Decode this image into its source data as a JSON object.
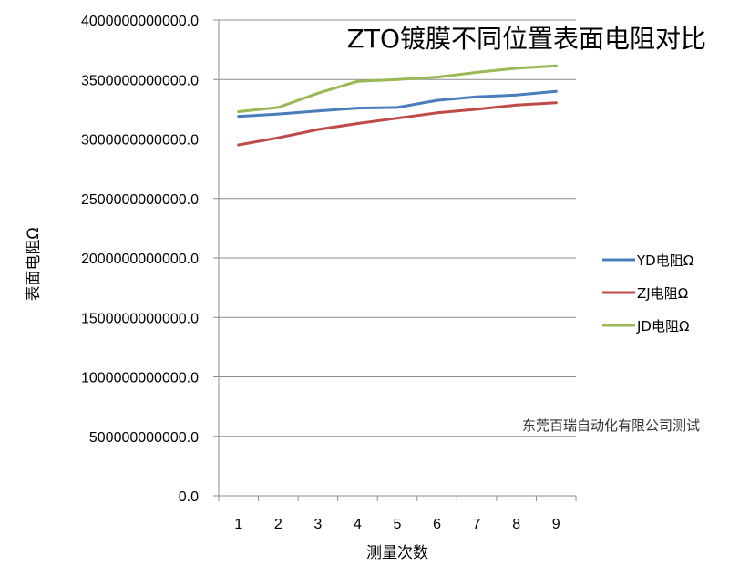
{
  "chart_data": {
    "type": "line",
    "title": "ZTO镀膜不同位置表面电阻对比",
    "xlabel": "测量次数",
    "ylabel": "表面电阻Ω",
    "categories": [
      "1",
      "2",
      "3",
      "4",
      "5",
      "6",
      "7",
      "8",
      "9"
    ],
    "ylim": [
      0,
      4000000000000
    ],
    "yticks": [
      0,
      500000000000,
      1000000000000,
      1500000000000,
      2000000000000,
      2500000000000,
      3000000000000,
      3500000000000,
      4000000000000
    ],
    "ytick_labels": [
      "0.0",
      "500000000000.0",
      "1000000000000.0",
      "1500000000000.0",
      "2000000000000.0",
      "2500000000000.0",
      "3000000000000.0",
      "3500000000000.0",
      "4000000000000.0"
    ],
    "grid": "horizontal",
    "legend_position": "right",
    "series": [
      {
        "name": "YD电阻Ω",
        "color": "#4A7EBB",
        "values": [
          3190000000000,
          3210000000000,
          3235000000000,
          3260000000000,
          3265000000000,
          3325000000000,
          3355000000000,
          3370000000000,
          3400000000000
        ]
      },
      {
        "name": "ZJ电阻Ω",
        "color": "#BE4B48",
        "values": [
          2950000000000,
          3010000000000,
          3080000000000,
          3130000000000,
          3175000000000,
          3220000000000,
          3250000000000,
          3285000000000,
          3305000000000
        ]
      },
      {
        "name": "JD电阻Ω",
        "color": "#98B954",
        "values": [
          3230000000000,
          3265000000000,
          3385000000000,
          3485000000000,
          3500000000000,
          3520000000000,
          3560000000000,
          3595000000000,
          3615000000000
        ]
      }
    ],
    "annotation": "东莞百瑞自动化有限公司测试"
  }
}
